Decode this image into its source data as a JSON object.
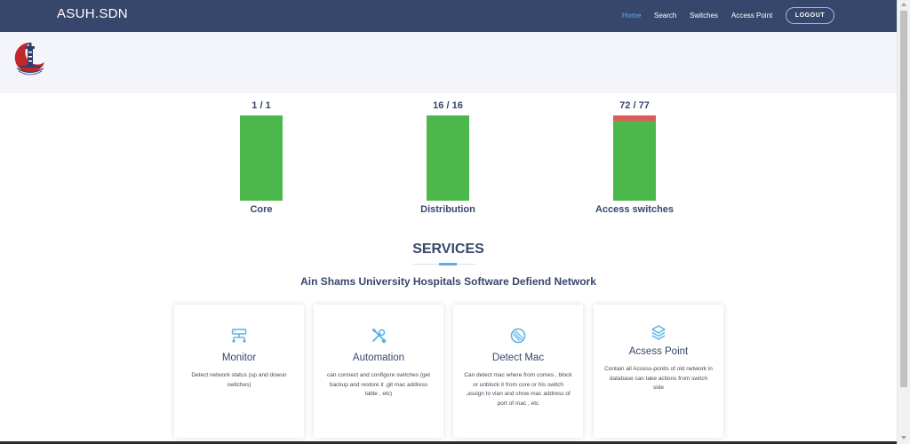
{
  "navbar": {
    "brand": "ASUH.SDN",
    "links": [
      {
        "label": "Home",
        "active": true
      },
      {
        "label": "Search",
        "active": false
      },
      {
        "label": "Switches",
        "active": false
      },
      {
        "label": "Access Point",
        "active": false
      }
    ],
    "logout_label": "LOGOUT"
  },
  "hero": {
    "logo_icon": "university-hospital-logo"
  },
  "switch_stats": [
    {
      "count_label": "1 / 1",
      "up": 1,
      "total": 1,
      "label": "Core"
    },
    {
      "count_label": "16 / 16",
      "up": 16,
      "total": 16,
      "label": "Distribution"
    },
    {
      "count_label": "72 / 77",
      "up": 72,
      "total": 77,
      "label": "Access switches"
    }
  ],
  "services": {
    "title": "SERVICES",
    "subtitle": "Ain Shams University Hospitals Software Defiend Network",
    "cards": [
      {
        "icon": "network-monitor-icon",
        "title": "Monitor",
        "description": "Detect network status (up and dowun switches)"
      },
      {
        "icon": "tools-icon",
        "title": "Automation",
        "description": "can connect and configure switches (get backup and restore it ,git mac address table , etc)"
      },
      {
        "icon": "globe-icon",
        "title": "Detect Mac",
        "description": "Can detect mac where from comes , block or unblock it from core or his switch ,assign to vlan and show mac address of port of mac , etc"
      },
      {
        "icon": "layers-icon",
        "title": "Acsess Point",
        "description": "Contain all Access-ponits of old network in database can take actions from switch side"
      }
    ]
  },
  "colors": {
    "navbar_bg": "#37466b",
    "active_link": "#5ab0e6",
    "bar_up": "#4cb84c",
    "bar_down": "#e05a5a",
    "heading": "#37466b"
  }
}
